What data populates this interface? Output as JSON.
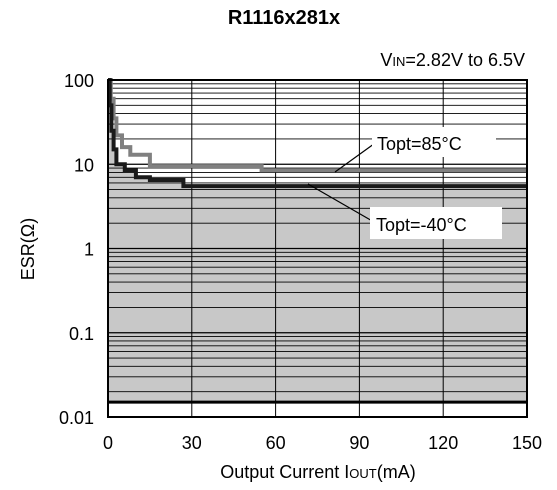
{
  "chart_data": {
    "type": "line",
    "title": "R1116x281x",
    "condition_prefix": "V",
    "condition_sub": "IN",
    "condition_suffix": "=2.82V to 6.5V",
    "xlabel_prefix": "Output Current I",
    "xlabel_sub": "OUT",
    "xlabel_suffix": "(mA)",
    "ylabel": "ESR(Ω)",
    "xlim": [
      0,
      150
    ],
    "ylim": [
      0.01,
      100
    ],
    "yscale": "log",
    "x_ticks": [
      0,
      30,
      60,
      90,
      120,
      150
    ],
    "x_tick_labels": [
      "0",
      "30",
      "60",
      "90",
      "120",
      "150"
    ],
    "y_ticks": [
      0.01,
      0.1,
      1,
      10,
      100
    ],
    "y_tick_labels": [
      "0.01",
      "0.1",
      "1",
      "10",
      "100"
    ],
    "stable_region_lower_esr": 0.015,
    "colors": {
      "stable_region": "#c8c8c8",
      "grid": "#000000",
      "series_85C": "#808080",
      "series_minus40C": "#1a1a1a"
    },
    "series": [
      {
        "name": "Topt=85°C",
        "x": [
          0,
          1,
          1,
          2,
          2,
          3,
          3,
          5,
          5,
          8,
          8,
          15,
          15,
          55,
          55,
          150
        ],
        "y": [
          100,
          100,
          60,
          60,
          35,
          35,
          22,
          22,
          16,
          16,
          13,
          13,
          9.5,
          9.5,
          8.5,
          8.5
        ]
      },
      {
        "name": "Topt=-40°C",
        "x": [
          0,
          0.6,
          0.6,
          1.2,
          1.2,
          2,
          2,
          3,
          3,
          6,
          6,
          10,
          10,
          15,
          15,
          27,
          27,
          150
        ],
        "y": [
          100,
          100,
          50,
          50,
          25,
          25,
          15,
          15,
          10,
          10,
          8.5,
          8.5,
          7,
          7,
          6.5,
          6.5,
          5.5,
          5.5
        ]
      }
    ]
  }
}
